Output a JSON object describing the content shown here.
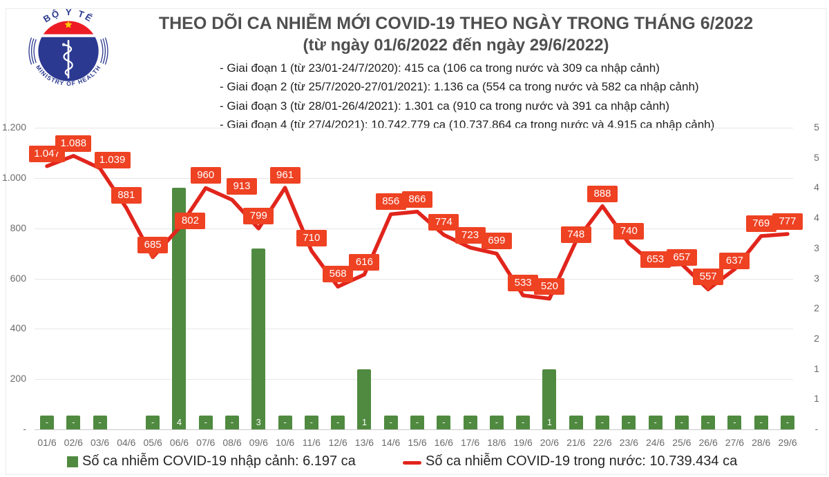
{
  "header": {
    "title": "THEO DÕI CA NHIỄM MỚI COVID-19 THEO NGÀY TRONG THÁNG 6/2022",
    "subtitle": "(từ ngày 01/6/2022 đến ngày 29/6/2022)",
    "phases": [
      "- Giai đoạn 1 (từ 23/01-24/7/2020): 415 ca (106 ca trong nước và 309 ca nhập cảnh)",
      "- Giai đoạn 2 (từ 25/7/2020-27/01/2021): 1.136 ca (554 ca trong nước và 582 ca nhập cảnh)",
      "- Giai đoạn 3 (từ 28/01-26/4/2021): 1.301 ca (910 ca trong nước và 391 ca nhập cảnh)",
      "- Giai đoạn 4 (từ 27/4/2021): 10.742.779 ca (10.737.864 ca trong nước và 4.915 ca nhập cảnh)"
    ],
    "logo": {
      "top_text": "BỘ Y TẾ",
      "bottom_text": "MINISTRY OF HEALTH"
    }
  },
  "chart_data": {
    "type": "combo-line-bar",
    "title": "THEO DÕI CA NHIỄM MỚI COVID-19 THEO NGÀY TRONG THÁNG 6/2022",
    "categories": [
      "01/6",
      "02/6",
      "03/6",
      "04/6",
      "05/6",
      "06/6",
      "07/6",
      "08/6",
      "09/6",
      "10/6",
      "11/6",
      "12/6",
      "13/6",
      "14/6",
      "15/6",
      "16/6",
      "17/6",
      "18/6",
      "19/6",
      "20/6",
      "21/6",
      "22/6",
      "23/6",
      "24/6",
      "25/6",
      "26/6",
      "27/6",
      "28/6",
      "29/6"
    ],
    "series": [
      {
        "name": "Số ca nhiễm COVID-19 trong nước",
        "chart": "line",
        "axis": "left",
        "color": "#e1251c",
        "values": [
          1047,
          1088,
          1039,
          881,
          685,
          802,
          960,
          913,
          799,
          961,
          710,
          568,
          616,
          856,
          866,
          774,
          723,
          699,
          533,
          520,
          748,
          888,
          740,
          653,
          657,
          557,
          637,
          769,
          777
        ],
        "labels": [
          "1.047",
          "1.088",
          "1.039",
          "881",
          "685",
          "802",
          "960",
          "913",
          "799",
          "961",
          "710",
          "568",
          "616",
          "856",
          "866",
          "774",
          "723",
          "699",
          "533",
          "520",
          "748",
          "888",
          "740",
          "653",
          "657",
          "557",
          "637",
          "769",
          "777"
        ]
      },
      {
        "name": "Số ca nhiễm COVID-19 nhập cảnh",
        "chart": "bar",
        "axis": "right",
        "color": "#4f8a40",
        "values": [
          0,
          0,
          0,
          null,
          0,
          4,
          0,
          0,
          3,
          0,
          0,
          0,
          1,
          0,
          0,
          0,
          0,
          0,
          0,
          1,
          0,
          0,
          0,
          0,
          0,
          0,
          0,
          0,
          0
        ],
        "labels": [
          "-",
          "-",
          "-",
          "",
          "-",
          "4",
          "-",
          "-",
          "3",
          "-",
          "-",
          "-",
          "1",
          "-",
          "-",
          "-",
          "-",
          "-",
          "-",
          "1",
          "-",
          "-",
          "-",
          "-",
          "-",
          "-",
          "-",
          "-",
          "-"
        ]
      }
    ],
    "left_axis": {
      "range": [
        0,
        1200
      ],
      "ticks": [
        "1.200",
        "1.000",
        "800",
        "600",
        "400",
        "200",
        "-"
      ]
    },
    "right_axis": {
      "range": [
        0,
        5
      ],
      "ticks": [
        "5",
        "5",
        "4",
        "4",
        "3",
        "3",
        "2",
        "2",
        "1",
        "1",
        "-"
      ]
    },
    "grid": true,
    "legend_position": "bottom"
  },
  "legend": {
    "imported": "Số ca nhiễm COVID-19 nhập cảnh: 6.197 ca",
    "domestic": "Số ca nhiễm COVID-19 trong nước: 10.739.434 ca"
  },
  "colors": {
    "line_red": "#e1251c",
    "label_box_red": "#ee4223",
    "bar_green": "#4f8a40",
    "logo_navy": "#2b3990",
    "flag_red": "#ec1c24",
    "star_yellow": "#ffcb05",
    "grid": "#e6e6e6",
    "axis_text": "#6b6b6b"
  }
}
